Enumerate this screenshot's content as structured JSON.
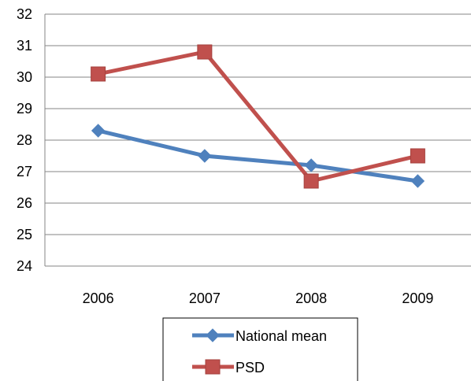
{
  "chart_data": {
    "type": "line",
    "categories": [
      "2006",
      "2007",
      "2008",
      "2009"
    ],
    "series": [
      {
        "name": "National mean",
        "values": [
          28.3,
          27.5,
          27.2,
          26.7
        ],
        "color": "#4F81BD",
        "marker": "diamond"
      },
      {
        "name": "PSD",
        "values": [
          30.1,
          30.8,
          26.7,
          27.5
        ],
        "color": "#C0504D",
        "marker": "square"
      }
    ],
    "title": "",
    "xlabel": "",
    "ylabel": "",
    "ylim": [
      24,
      32
    ],
    "yticks": [
      "24",
      "25",
      "26",
      "27",
      "28",
      "29",
      "30",
      "31",
      "32"
    ],
    "grid": true,
    "legend_position": "bottom"
  }
}
